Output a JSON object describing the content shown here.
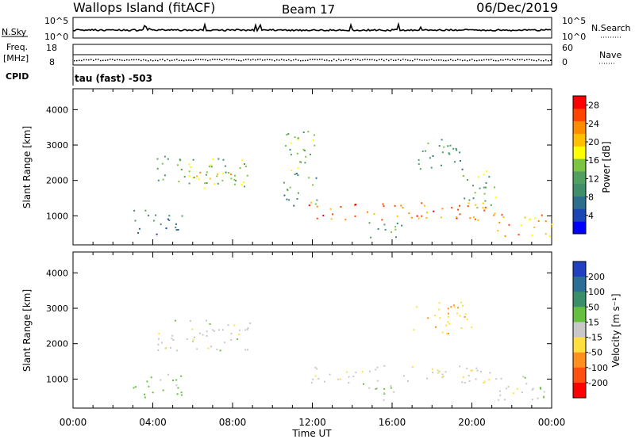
{
  "header": {
    "station": "Wallops Island (fitACF)",
    "beam": "Beam 17",
    "date": "06/Dec/2019"
  },
  "status_panels": {
    "nsky_label": "N.Sky",
    "nsky_ticks": [
      "10^5",
      "10^0"
    ],
    "nsearch_label": "N.Search",
    "nsearch_ticks": [
      "10^5",
      "10^0"
    ],
    "freq_label": "Freq.",
    "freq_unit": "[MHz]",
    "freq_ticks": [
      "18",
      "8"
    ],
    "nave_label": "Nave",
    "nave_ticks": [
      "60",
      "0"
    ],
    "cpid_label": "CPID",
    "cpid_value": "tau (fast) -503"
  },
  "chart_data": [
    {
      "type": "heatmap",
      "name": "power-panel",
      "xlabel": "",
      "ylabel": "Slant Range [km]",
      "x_ticks": [
        "00:00",
        "04:00",
        "08:00",
        "12:00",
        "16:00",
        "20:00",
        "00:00"
      ],
      "x_range_hours": [
        0,
        24
      ],
      "y_ticks": [
        1000,
        2000,
        3000,
        4000
      ],
      "y_range_km": [
        180,
        4590
      ],
      "colorbar": {
        "label": "Power [dB]",
        "ticks": [
          4,
          8,
          12,
          16,
          20,
          24,
          28
        ],
        "range": [
          0,
          30
        ],
        "colors": [
          "#0000ff",
          "#1c46b4",
          "#2b6f8c",
          "#3f8f6b",
          "#52a060",
          "#7ec443",
          "#ffff00",
          "#ffc000",
          "#ff8c00",
          "#ff4500",
          "#ff0000"
        ]
      },
      "echo_regions": [
        {
          "t": [
            4.2,
            9.0
          ],
          "r": [
            1800,
            2700
          ],
          "level": 14
        },
        {
          "t": [
            5.5,
            8.2
          ],
          "r": [
            1850,
            2250
          ],
          "level": 17
        },
        {
          "t": [
            10.5,
            12.2
          ],
          "r": [
            1300,
            3500
          ],
          "level": 12
        },
        {
          "t": [
            11.8,
            21.0
          ],
          "r": [
            900,
            1400
          ],
          "level": 24
        },
        {
          "t": [
            14.5,
            16.5
          ],
          "r": [
            400,
            900
          ],
          "level": 12
        },
        {
          "t": [
            17.0,
            19.5
          ],
          "r": [
            2300,
            3200
          ],
          "level": 12
        },
        {
          "t": [
            19.5,
            21.2
          ],
          "r": [
            1200,
            2300
          ],
          "level": 14
        },
        {
          "t": [
            21.0,
            24.0
          ],
          "r": [
            400,
            1100
          ],
          "level": 22
        },
        {
          "t": [
            3.0,
            5.5
          ],
          "r": [
            500,
            1200
          ],
          "level": 8
        }
      ]
    },
    {
      "type": "heatmap",
      "name": "velocity-panel",
      "xlabel": "Time UT",
      "ylabel": "Slant Range [km]",
      "x_ticks": [
        "00:00",
        "04:00",
        "08:00",
        "12:00",
        "16:00",
        "20:00",
        "00:00"
      ],
      "x_range_hours": [
        0,
        24
      ],
      "y_ticks": [
        1000,
        2000,
        3000,
        4000
      ],
      "y_range_km": [
        180,
        4590
      ],
      "colorbar": {
        "label": "Velocity [m s⁻¹]",
        "ticks": [
          200,
          100,
          50,
          15,
          -15,
          -50,
          -100,
          -200
        ],
        "colors": [
          "#2040c0",
          "#2c6f96",
          "#3b8e6a",
          "#66c040",
          "#c8c8c8",
          "#ffe040",
          "#ff9020",
          "#ff5010",
          "#ff0000"
        ]
      },
      "echo_regions": [
        {
          "t": [
            4.2,
            9.0
          ],
          "r": [
            1800,
            2700
          ],
          "velocity": 0
        },
        {
          "t": [
            11.8,
            21.0
          ],
          "r": [
            900,
            1400
          ],
          "velocity": -5
        },
        {
          "t": [
            14.5,
            16.5
          ],
          "r": [
            400,
            900
          ],
          "velocity": 5
        },
        {
          "t": [
            21.0,
            24.0
          ],
          "r": [
            400,
            1100
          ],
          "velocity": 0
        },
        {
          "t": [
            17.0,
            20.0
          ],
          "r": [
            2300,
            3200
          ],
          "velocity": -40
        },
        {
          "t": [
            3.0,
            5.5
          ],
          "r": [
            500,
            1200
          ],
          "velocity": 30
        }
      ]
    }
  ]
}
